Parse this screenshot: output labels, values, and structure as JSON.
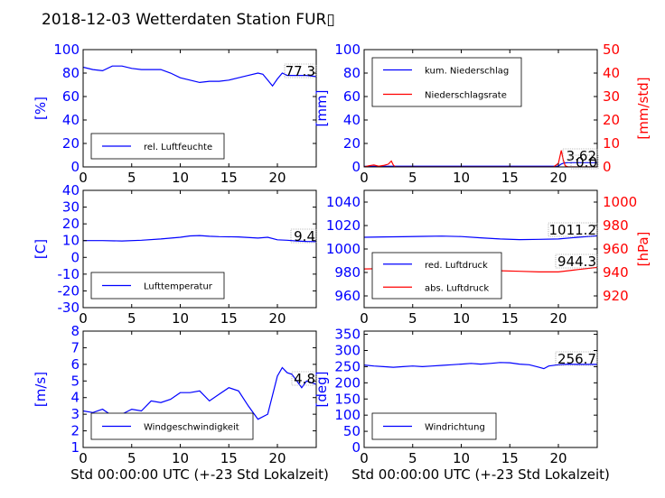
{
  "title": "2018-12-03 Wetterdaten Station FUR▯",
  "xlabel": "Std 00:00:00 UTC (+-23 Std Lokalzeit)",
  "colors": {
    "left_axis": "#0000ff",
    "right_axis": "#ff0000",
    "text": "#000000"
  },
  "chart_data": [
    {
      "type": "line",
      "ylabel": "[%]",
      "xlim": [
        0,
        24
      ],
      "ylim": [
        0,
        100
      ],
      "xticks": [
        0,
        5,
        10,
        15,
        20
      ],
      "yticks": [
        0,
        20,
        40,
        60,
        80,
        100
      ],
      "current_value": "77.3",
      "legend": [
        "rel. Luftfeuchte"
      ],
      "series": [
        {
          "name": "rel. Luftfeuchte",
          "color": "#0000ff",
          "x": [
            0,
            1,
            2,
            3,
            4,
            5,
            6,
            7,
            8,
            9,
            10,
            11,
            12,
            13,
            14,
            15,
            16,
            17,
            18,
            18.5,
            19,
            19.5,
            20,
            20.5,
            21,
            22,
            23,
            24
          ],
          "y": [
            85,
            83,
            82,
            86,
            86,
            84,
            83,
            83,
            83,
            80,
            76,
            74,
            72,
            73,
            73,
            74,
            76,
            78,
            80,
            79,
            74,
            69,
            75,
            80,
            78,
            78,
            78,
            77
          ]
        }
      ]
    },
    {
      "type": "line",
      "ylabel": "[mm]",
      "ylabel_right": "[mm/std]",
      "xlim": [
        0,
        24
      ],
      "ylim": [
        0,
        100
      ],
      "ylim_right": [
        0,
        50
      ],
      "xticks": [
        0,
        5,
        10,
        15,
        20
      ],
      "yticks": [
        0,
        20,
        40,
        60,
        80,
        100
      ],
      "yticks_right": [
        0,
        10,
        20,
        30,
        40,
        50
      ],
      "current_value": "3.62",
      "current_value_right": "0.0",
      "legend": [
        "kum. Niederschlag",
        "Niederschlagsrate"
      ],
      "series": [
        {
          "name": "kum. Niederschlag",
          "axis": "left",
          "color": "#0000ff",
          "x": [
            0,
            3,
            10,
            20,
            20.3,
            20.6,
            21,
            24
          ],
          "y": [
            0.5,
            0.6,
            0.6,
            0.7,
            2.5,
            3.4,
            3.6,
            3.6
          ]
        },
        {
          "name": "Niederschlagsrate",
          "axis": "right",
          "color": "#ff0000",
          "x": [
            0,
            0.5,
            1,
            1.5,
            2,
            2.5,
            2.8,
            3,
            3.2,
            4,
            10,
            19.5,
            20,
            20.3,
            20.5,
            20.7,
            21,
            24
          ],
          "y": [
            0,
            0.5,
            0.8,
            0.3,
            0.6,
            1.2,
            2.5,
            0.8,
            0,
            0,
            0,
            0,
            1.5,
            7,
            3,
            0.5,
            0,
            0
          ]
        }
      ]
    },
    {
      "type": "line",
      "ylabel": "[C]",
      "xlim": [
        0,
        24
      ],
      "ylim": [
        -30,
        40
      ],
      "xticks": [
        0,
        5,
        10,
        15,
        20
      ],
      "yticks": [
        -30,
        -20,
        -10,
        0,
        10,
        20,
        30,
        40
      ],
      "current_value": "9.4",
      "legend": [
        "Lufttemperatur"
      ],
      "series": [
        {
          "name": "Lufttemperatur",
          "color": "#0000ff",
          "x": [
            0,
            2,
            4,
            6,
            8,
            10,
            11,
            12,
            13,
            14,
            16,
            18,
            19,
            20,
            21,
            22,
            23,
            24
          ],
          "y": [
            10,
            10,
            9.8,
            10.2,
            11,
            12,
            12.8,
            13,
            12.6,
            12.4,
            12.2,
            11.5,
            12,
            10.5,
            10.2,
            9.8,
            9.5,
            9.4
          ]
        }
      ]
    },
    {
      "type": "line",
      "ylabel_right": "[hPa]",
      "xlim": [
        0,
        24
      ],
      "ylim": [
        950,
        1050
      ],
      "ylim_right": [
        910,
        1010
      ],
      "xticks": [
        0,
        5,
        10,
        15,
        20
      ],
      "yticks": [
        960,
        980,
        1000,
        1020,
        1040
      ],
      "yticks_right": [
        920,
        940,
        960,
        980,
        1000
      ],
      "current_value": "1011.2",
      "current_value_right": "944.3",
      "legend": [
        "red. Luftdruck",
        "abs. Luftdruck"
      ],
      "series": [
        {
          "name": "red. Luftdruck",
          "axis": "left",
          "color": "#0000ff",
          "x": [
            0,
            2,
            4,
            6,
            8,
            10,
            12,
            14,
            16,
            18,
            20,
            22,
            24
          ],
          "y": [
            1010,
            1010.3,
            1010.5,
            1010.8,
            1011,
            1010.6,
            1009.5,
            1008.5,
            1008,
            1008.2,
            1008.5,
            1010,
            1011.2
          ]
        },
        {
          "name": "abs. Luftdruck",
          "axis": "right",
          "color": "#ff0000",
          "x": [
            0,
            2,
            4,
            6,
            8,
            10,
            12,
            14,
            16,
            18,
            20,
            22,
            24
          ],
          "y": [
            943,
            943.3,
            943.5,
            943.6,
            943.4,
            943,
            942,
            941.5,
            941,
            940.5,
            940.5,
            942.5,
            944.3
          ]
        }
      ]
    },
    {
      "type": "line",
      "ylabel": "[m/s]",
      "xlim": [
        0,
        24
      ],
      "ylim": [
        1,
        8
      ],
      "xticks": [
        0,
        5,
        10,
        15,
        20
      ],
      "yticks": [
        1,
        2,
        3,
        4,
        5,
        6,
        7,
        8
      ],
      "current_value": "4.8",
      "legend": [
        "Windgeschwindigkeit"
      ],
      "series": [
        {
          "name": "Windgeschwindigkeit",
          "color": "#0000ff",
          "x": [
            0,
            1,
            2,
            3,
            4,
            5,
            6,
            7,
            8,
            9,
            10,
            11,
            12,
            13,
            14,
            15,
            16,
            17,
            18,
            19,
            20,
            20.5,
            21,
            21.5,
            22,
            22.5,
            23,
            24
          ],
          "y": [
            3.2,
            3.1,
            3.3,
            2.9,
            3.0,
            3.3,
            3.2,
            3.8,
            3.7,
            3.9,
            4.3,
            4.3,
            4.4,
            3.8,
            4.2,
            4.6,
            4.4,
            3.5,
            2.7,
            3.0,
            5.3,
            5.8,
            5.5,
            5.4,
            5.0,
            4.6,
            5.0,
            4.8
          ]
        }
      ]
    },
    {
      "type": "line",
      "ylabel": "[deg]",
      "xlim": [
        0,
        24
      ],
      "ylim": [
        0,
        360
      ],
      "xticks": [
        0,
        5,
        10,
        15,
        20
      ],
      "yticks": [
        0,
        50,
        100,
        150,
        200,
        250,
        300,
        350
      ],
      "current_value": "256.7",
      "legend": [
        "Windrichtung"
      ],
      "series": [
        {
          "name": "Windrichtung",
          "color": "#0000ff",
          "x": [
            0,
            1,
            2,
            3,
            4,
            5,
            6,
            7,
            8,
            9,
            10,
            11,
            12,
            13,
            14,
            15,
            16,
            17,
            18,
            18.5,
            19,
            20,
            21,
            22,
            23,
            24
          ],
          "y": [
            255,
            252,
            250,
            248,
            250,
            252,
            250,
            252,
            254,
            256,
            258,
            260,
            258,
            260,
            263,
            262,
            258,
            256,
            248,
            244,
            252,
            256,
            258,
            257,
            257,
            257
          ]
        }
      ]
    }
  ]
}
